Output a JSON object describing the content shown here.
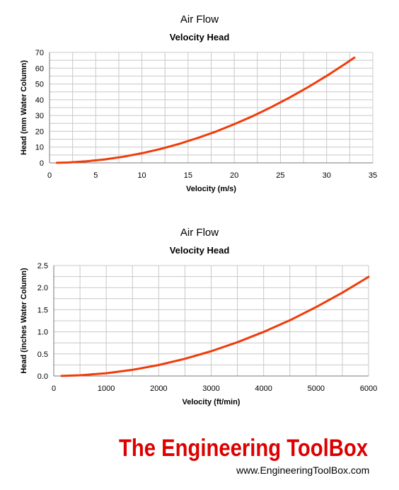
{
  "chart_data": [
    {
      "type": "line",
      "title": "Air Flow",
      "subtitle": "Velocity Head",
      "xlabel": "Velocity (m/s)",
      "ylabel": "Head (mm Water Column)",
      "xlim": [
        0,
        35
      ],
      "ylim": [
        0,
        70
      ],
      "xticks": [
        0,
        5,
        10,
        15,
        20,
        25,
        30,
        35
      ],
      "yticks": [
        0,
        10,
        20,
        30,
        40,
        50,
        60,
        70
      ],
      "grid": true,
      "series": [
        {
          "color": "#f03c0a",
          "x": [
            0.8,
            2,
            4,
            6,
            8,
            10,
            12,
            14,
            16,
            18,
            20,
            22,
            24,
            26,
            28,
            30,
            32,
            33
          ],
          "y": [
            0.04,
            0.24,
            0.98,
            2.2,
            3.9,
            6.1,
            8.8,
            12.0,
            15.7,
            19.8,
            24.5,
            29.6,
            35.3,
            41.4,
            48.0,
            55.1,
            62.7,
            66.7
          ]
        }
      ]
    },
    {
      "type": "line",
      "title": "Air Flow",
      "subtitle": "Velocity Head",
      "xlabel": "Velocity (ft/min)",
      "ylabel": "Head (inches Water Column)",
      "xlim": [
        0,
        6000
      ],
      "ylim": [
        0,
        2.5
      ],
      "xticks": [
        0,
        1000,
        2000,
        3000,
        4000,
        5000,
        6000
      ],
      "yticks": [
        0.0,
        0.5,
        1.0,
        1.5,
        2.0,
        2.5
      ],
      "ytick_labels": [
        "0.0",
        "0.5",
        "1.0",
        "1.5",
        "2.0",
        "2.5"
      ],
      "grid": true,
      "series": [
        {
          "color": "#f03c0a",
          "x": [
            150,
            500,
            1000,
            1500,
            2000,
            2500,
            3000,
            3500,
            4000,
            4500,
            5000,
            5500,
            6000
          ],
          "y": [
            0.0014,
            0.0156,
            0.0623,
            0.14,
            0.249,
            0.39,
            0.561,
            0.764,
            0.998,
            1.262,
            1.559,
            1.886,
            2.244
          ]
        }
      ]
    }
  ],
  "branding": {
    "logo_text": "The Engineering ToolBox",
    "url": "www.EngineeringToolBox.com"
  }
}
